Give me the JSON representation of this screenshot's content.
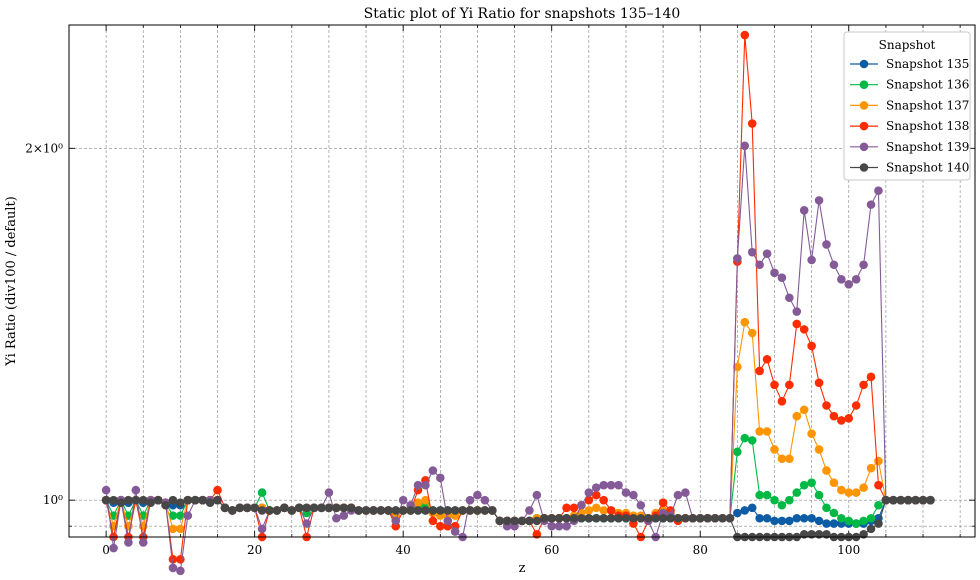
{
  "chart_data": {
    "type": "line",
    "title": "Static plot of Yi Ratio for snapshots 135–140",
    "xlabel": "z",
    "ylabel": "Yi Ratio (div100 / default)",
    "xlim": [
      -5,
      117
    ],
    "ylim": [
      0.93,
      2.55
    ],
    "yscale": "log",
    "grid": true,
    "legend": {
      "title": "Snapshot",
      "placement": "top-right"
    },
    "x_ticks": [
      0,
      20,
      40,
      60,
      80,
      100
    ],
    "x_tick_labels": [
      "0",
      "20",
      "40",
      "60",
      "80",
      "100"
    ],
    "y_ticks": [
      1.0,
      2.0
    ],
    "y_tick_labels": [
      "10⁰",
      "2×10⁰"
    ],
    "x": [
      0,
      1,
      2,
      3,
      4,
      5,
      6,
      7,
      8,
      9,
      10,
      11,
      12,
      13,
      14,
      15,
      16,
      17,
      18,
      19,
      20,
      21,
      22,
      23,
      24,
      25,
      26,
      27,
      28,
      29,
      30,
      31,
      32,
      33,
      34,
      35,
      36,
      37,
      38,
      39,
      40,
      41,
      42,
      43,
      44,
      45,
      46,
      47,
      48,
      49,
      50,
      51,
      52,
      53,
      54,
      55,
      56,
      57,
      58,
      59,
      60,
      61,
      62,
      63,
      64,
      65,
      66,
      67,
      68,
      69,
      70,
      71,
      72,
      73,
      74,
      75,
      76,
      77,
      78,
      79,
      80,
      81,
      82,
      83,
      84,
      85,
      86,
      87,
      88,
      89,
      90,
      91,
      92,
      93,
      94,
      95,
      96,
      97,
      98,
      99,
      100,
      101,
      102,
      103,
      104,
      105,
      106,
      107,
      108,
      109,
      110,
      111
    ],
    "series": [
      {
        "name": "Snapshot 135",
        "color": "#0C5DA5",
        "values": [
          1.0,
          0.995,
          1.0,
          0.995,
          1.0,
          0.995,
          1.0,
          1.0,
          0.995,
          0.99,
          0.99,
          1.0,
          1.0,
          1.0,
          1.0,
          1.0,
          0.985,
          0.98,
          0.985,
          0.985,
          0.985,
          0.985,
          0.98,
          0.98,
          0.985,
          0.98,
          0.985,
          0.985,
          0.985,
          0.985,
          0.985,
          0.985,
          0.985,
          0.985,
          0.98,
          0.98,
          0.98,
          0.98,
          0.98,
          0.98,
          0.98,
          0.98,
          0.98,
          0.98,
          0.98,
          0.98,
          0.98,
          0.98,
          0.98,
          0.98,
          0.98,
          0.98,
          0.98,
          0.96,
          0.96,
          0.96,
          0.96,
          0.96,
          0.965,
          0.965,
          0.965,
          0.965,
          0.965,
          0.965,
          0.965,
          0.965,
          0.965,
          0.965,
          0.965,
          0.965,
          0.965,
          0.965,
          0.965,
          0.965,
          0.965,
          0.965,
          0.965,
          0.965,
          0.965,
          0.965,
          0.965,
          0.965,
          0.965,
          0.965,
          0.965,
          0.975,
          0.98,
          0.985,
          0.965,
          0.965,
          0.96,
          0.96,
          0.96,
          0.965,
          0.965,
          0.965,
          0.96,
          0.955,
          0.955,
          0.955,
          0.955,
          0.955,
          0.955,
          0.96,
          0.965,
          1.0,
          1.0,
          1.0,
          1.0,
          1.0,
          1.0,
          1.0
        ]
      },
      {
        "name": "Snapshot 136",
        "color": "#00B945",
        "values": [
          1.0,
          0.97,
          1.0,
          0.97,
          1.0,
          0.97,
          1.0,
          1.0,
          0.995,
          0.97,
          0.97,
          1.0,
          1.0,
          1.0,
          1.0,
          1.0,
          0.985,
          0.98,
          0.985,
          0.985,
          0.985,
          1.015,
          0.98,
          0.98,
          0.985,
          0.98,
          0.985,
          0.975,
          0.985,
          0.985,
          0.985,
          0.985,
          0.985,
          0.985,
          0.98,
          0.98,
          0.98,
          0.98,
          0.98,
          0.975,
          0.98,
          0.98,
          0.985,
          0.99,
          0.98,
          0.98,
          0.975,
          0.975,
          0.98,
          0.98,
          0.98,
          0.98,
          0.98,
          0.96,
          0.96,
          0.96,
          0.96,
          0.96,
          0.965,
          0.965,
          0.965,
          0.965,
          0.965,
          0.965,
          0.965,
          0.965,
          0.965,
          0.965,
          0.965,
          0.965,
          0.965,
          0.965,
          0.965,
          0.965,
          0.965,
          0.965,
          0.965,
          0.965,
          0.965,
          0.965,
          0.965,
          0.965,
          0.965,
          0.965,
          0.965,
          1.1,
          1.13,
          1.125,
          1.01,
          1.01,
          1.0,
          0.99,
          1.0,
          1.015,
          1.03,
          1.035,
          1.01,
          0.985,
          0.975,
          0.965,
          0.96,
          0.955,
          0.96,
          0.965,
          0.99,
          1.0,
          1.0,
          1.0,
          1.0,
          1.0,
          1.0,
          1.0
        ]
      },
      {
        "name": "Snapshot 137",
        "color": "#FF9500",
        "values": [
          1.0,
          0.95,
          1.0,
          0.95,
          1.0,
          0.95,
          1.0,
          1.0,
          0.995,
          0.945,
          0.945,
          1.0,
          1.0,
          1.0,
          1.0,
          1.0,
          0.985,
          0.98,
          0.985,
          0.985,
          0.985,
          0.985,
          0.98,
          0.98,
          0.985,
          0.98,
          0.985,
          0.985,
          0.985,
          0.985,
          0.985,
          0.985,
          0.985,
          0.985,
          0.98,
          0.98,
          0.98,
          0.98,
          0.98,
          0.97,
          0.98,
          0.98,
          0.995,
          1.0,
          0.975,
          0.97,
          0.97,
          0.97,
          0.98,
          0.98,
          0.98,
          0.98,
          0.98,
          0.96,
          0.96,
          0.96,
          0.96,
          0.96,
          0.965,
          0.965,
          0.965,
          0.965,
          0.965,
          0.97,
          0.975,
          0.98,
          0.985,
          0.98,
          0.98,
          0.975,
          0.975,
          0.97,
          0.97,
          0.965,
          0.975,
          0.98,
          0.975,
          0.965,
          0.965,
          0.965,
          0.965,
          0.965,
          0.965,
          0.965,
          0.965,
          1.3,
          1.42,
          1.39,
          1.145,
          1.145,
          1.105,
          1.085,
          1.085,
          1.18,
          1.195,
          1.14,
          1.105,
          1.06,
          1.035,
          1.02,
          1.015,
          1.015,
          1.025,
          1.065,
          1.08,
          1.0,
          1.0,
          1.0,
          1.0,
          1.0,
          1.0,
          1.0
        ]
      },
      {
        "name": "Snapshot 138",
        "color": "#FF2C00",
        "values": [
          1.0,
          0.93,
          1.0,
          0.93,
          1.0,
          0.93,
          1.0,
          1.0,
          0.995,
          0.89,
          0.89,
          1.0,
          1.0,
          1.0,
          1.0,
          1.02,
          0.985,
          0.98,
          0.985,
          0.985,
          0.985,
          0.93,
          0.98,
          0.98,
          0.985,
          0.98,
          0.985,
          0.93,
          0.985,
          0.985,
          0.985,
          0.985,
          0.985,
          0.985,
          0.98,
          0.98,
          0.98,
          0.98,
          0.98,
          0.95,
          0.98,
          0.98,
          1.02,
          1.04,
          0.96,
          0.95,
          0.95,
          0.95,
          0.98,
          0.98,
          0.98,
          0.98,
          0.98,
          0.96,
          0.96,
          0.96,
          0.96,
          0.96,
          0.935,
          0.965,
          0.965,
          0.965,
          0.985,
          0.985,
          0.99,
          1.0,
          1.01,
          1.0,
          0.98,
          0.97,
          0.97,
          0.955,
          0.93,
          0.96,
          0.97,
          0.995,
          0.98,
          0.96,
          0.965,
          0.965,
          0.965,
          0.965,
          0.965,
          0.965,
          0.965,
          1.6,
          2.5,
          2.1,
          1.29,
          1.32,
          1.255,
          1.215,
          1.255,
          1.415,
          1.4,
          1.355,
          1.26,
          1.205,
          1.18,
          1.17,
          1.175,
          1.205,
          1.255,
          1.275,
          1.03,
          1.0,
          1.0,
          1.0,
          1.0,
          1.0,
          1.0,
          1.0
        ]
      },
      {
        "name": "Snapshot 139",
        "color": "#845B97",
        "values": [
          1.02,
          0.91,
          1.0,
          0.92,
          1.02,
          0.92,
          1.0,
          1.0,
          0.995,
          0.875,
          0.87,
          0.97,
          1.0,
          1.0,
          1.0,
          1.0,
          0.985,
          0.98,
          0.985,
          0.985,
          0.985,
          0.945,
          0.98,
          0.98,
          0.985,
          0.98,
          0.985,
          0.955,
          0.985,
          0.985,
          1.015,
          0.965,
          0.97,
          0.98,
          0.98,
          0.98,
          0.98,
          0.98,
          0.98,
          0.96,
          1.0,
          0.99,
          1.03,
          1.03,
          1.06,
          1.045,
          0.96,
          0.94,
          0.93,
          1.0,
          1.01,
          1.0,
          0.98,
          0.96,
          0.95,
          0.95,
          0.96,
          0.98,
          1.01,
          0.96,
          0.95,
          0.95,
          0.95,
          0.96,
          0.99,
          1.015,
          1.025,
          1.03,
          1.03,
          1.03,
          1.015,
          1.01,
          0.99,
          0.96,
          0.93,
          0.975,
          0.97,
          1.01,
          1.015,
          0.965,
          0.965,
          0.965,
          0.965,
          0.965,
          0.965,
          1.61,
          2.01,
          1.63,
          1.59,
          1.625,
          1.565,
          1.55,
          1.49,
          1.45,
          1.77,
          1.605,
          1.805,
          1.655,
          1.59,
          1.545,
          1.53,
          1.545,
          1.59,
          1.79,
          1.84,
          1.0,
          1.0,
          1.0,
          1.0,
          1.0,
          1.0,
          1.0
        ]
      },
      {
        "name": "Snapshot 140",
        "color": "#474747",
        "values": [
          1.0,
          1.0,
          0.995,
          1.0,
          1.0,
          1.0,
          0.995,
          1.0,
          0.99,
          1.0,
          0.995,
          1.0,
          1.0,
          1.0,
          0.995,
          1.0,
          0.985,
          0.98,
          0.985,
          0.985,
          0.985,
          0.98,
          0.98,
          0.98,
          0.985,
          0.98,
          0.985,
          0.985,
          0.985,
          0.985,
          0.985,
          0.985,
          0.985,
          0.985,
          0.98,
          0.98,
          0.98,
          0.98,
          0.98,
          0.98,
          0.98,
          0.98,
          0.98,
          0.98,
          0.98,
          0.98,
          0.98,
          0.98,
          0.98,
          0.98,
          0.98,
          0.98,
          0.98,
          0.96,
          0.96,
          0.96,
          0.96,
          0.96,
          0.96,
          0.965,
          0.965,
          0.965,
          0.965,
          0.965,
          0.965,
          0.965,
          0.965,
          0.965,
          0.965,
          0.965,
          0.965,
          0.965,
          0.965,
          0.965,
          0.965,
          0.965,
          0.965,
          0.965,
          0.965,
          0.965,
          0.965,
          0.965,
          0.965,
          0.965,
          0.965,
          0.93,
          0.93,
          0.93,
          0.93,
          0.93,
          0.93,
          0.93,
          0.93,
          0.93,
          0.935,
          0.935,
          0.935,
          0.935,
          0.93,
          0.93,
          0.93,
          0.93,
          0.935,
          0.945,
          0.955,
          1.0,
          1.0,
          1.0,
          1.0,
          1.0,
          1.0,
          1.0
        ]
      }
    ]
  }
}
